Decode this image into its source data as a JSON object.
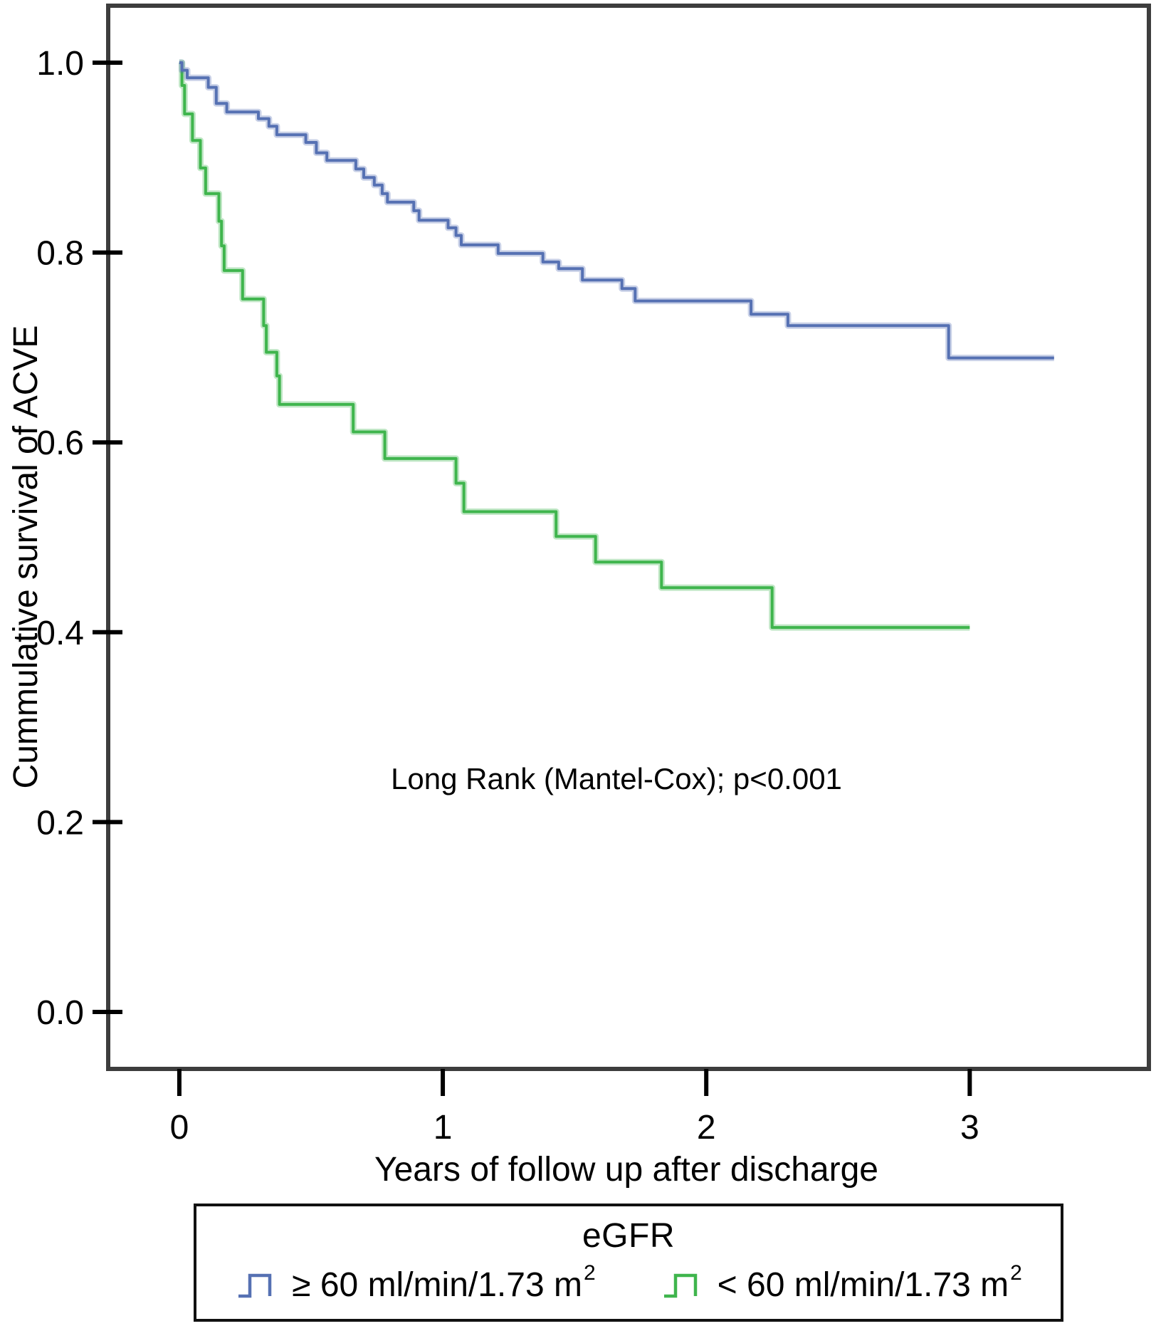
{
  "chart_data": {
    "type": "line",
    "subtype": "kaplan-meier-step-survival",
    "title": "",
    "xlabel": "Years of follow up after discharge",
    "ylabel": "Cummulative survival of ACVE",
    "annotation": "Long Rank (Mantel-Cox); p<0.001",
    "annotation_xy": [
      1.66,
      0.235
    ],
    "xlim": [
      -0.27,
      3.68
    ],
    "ylim": [
      -0.06,
      1.06
    ],
    "grid": false,
    "axis_color": "#3d3d3d",
    "tick_color": "#000000",
    "x_ticks": [
      {
        "value": 0,
        "label": "0"
      },
      {
        "value": 1,
        "label": "1"
      },
      {
        "value": 2,
        "label": "2"
      },
      {
        "value": 3,
        "label": "3"
      }
    ],
    "y_ticks": [
      {
        "value": 0.0,
        "label": "0.0"
      },
      {
        "value": 0.2,
        "label": "0.2"
      },
      {
        "value": 0.4,
        "label": "0.4"
      },
      {
        "value": 0.6,
        "label": "0.6"
      },
      {
        "value": 0.8,
        "label": "0.8"
      },
      {
        "value": 1.0,
        "label": "1.0"
      }
    ],
    "legend": {
      "position": "bottom",
      "title": "eGFR",
      "entries": [
        {
          "id": "egfr-ge-60",
          "label_base": "≥ 60 ml/min/1.73 m",
          "label_sup": "2",
          "color": "#5671b3"
        },
        {
          "id": "egfr-lt-60",
          "label_base": "< 60 ml/min/1.73 m",
          "label_sup": "2",
          "color": "#3fb54d"
        }
      ]
    },
    "series": [
      {
        "id": "egfr-ge-60",
        "name": "≥ 60 ml/min/1.73 m²",
        "color": "#5671b3",
        "step": "post",
        "points": [
          [
            0.0,
            1.0
          ],
          [
            0.01,
            0.992
          ],
          [
            0.03,
            0.984
          ],
          [
            0.11,
            0.974
          ],
          [
            0.14,
            0.957
          ],
          [
            0.18,
            0.948
          ],
          [
            0.3,
            0.941
          ],
          [
            0.34,
            0.933
          ],
          [
            0.37,
            0.924
          ],
          [
            0.48,
            0.916
          ],
          [
            0.52,
            0.905
          ],
          [
            0.56,
            0.897
          ],
          [
            0.67,
            0.888
          ],
          [
            0.7,
            0.879
          ],
          [
            0.74,
            0.871
          ],
          [
            0.77,
            0.862
          ],
          [
            0.79,
            0.853
          ],
          [
            0.89,
            0.844
          ],
          [
            0.91,
            0.834
          ],
          [
            1.02,
            0.826
          ],
          [
            1.05,
            0.818
          ],
          [
            1.07,
            0.808
          ],
          [
            1.21,
            0.799
          ],
          [
            1.38,
            0.79
          ],
          [
            1.44,
            0.783
          ],
          [
            1.53,
            0.771
          ],
          [
            1.68,
            0.762
          ],
          [
            1.73,
            0.749
          ],
          [
            2.17,
            0.735
          ],
          [
            2.31,
            0.723
          ],
          [
            2.92,
            0.689
          ],
          [
            3.32,
            0.689
          ]
        ]
      },
      {
        "id": "egfr-lt-60",
        "name": "< 60 ml/min/1.73 m²",
        "color": "#3fb54d",
        "step": "post",
        "points": [
          [
            0.0,
            1.0
          ],
          [
            0.01,
            0.976
          ],
          [
            0.02,
            0.946
          ],
          [
            0.05,
            0.918
          ],
          [
            0.08,
            0.889
          ],
          [
            0.1,
            0.862
          ],
          [
            0.15,
            0.833
          ],
          [
            0.16,
            0.807
          ],
          [
            0.17,
            0.781
          ],
          [
            0.24,
            0.751
          ],
          [
            0.32,
            0.723
          ],
          [
            0.33,
            0.695
          ],
          [
            0.37,
            0.67
          ],
          [
            0.38,
            0.64
          ],
          [
            0.66,
            0.611
          ],
          [
            0.78,
            0.583
          ],
          [
            1.05,
            0.557
          ],
          [
            1.08,
            0.527
          ],
          [
            1.43,
            0.501
          ],
          [
            1.58,
            0.474
          ],
          [
            1.83,
            0.447
          ],
          [
            2.25,
            0.405
          ],
          [
            3.0,
            0.405
          ]
        ]
      }
    ]
  }
}
